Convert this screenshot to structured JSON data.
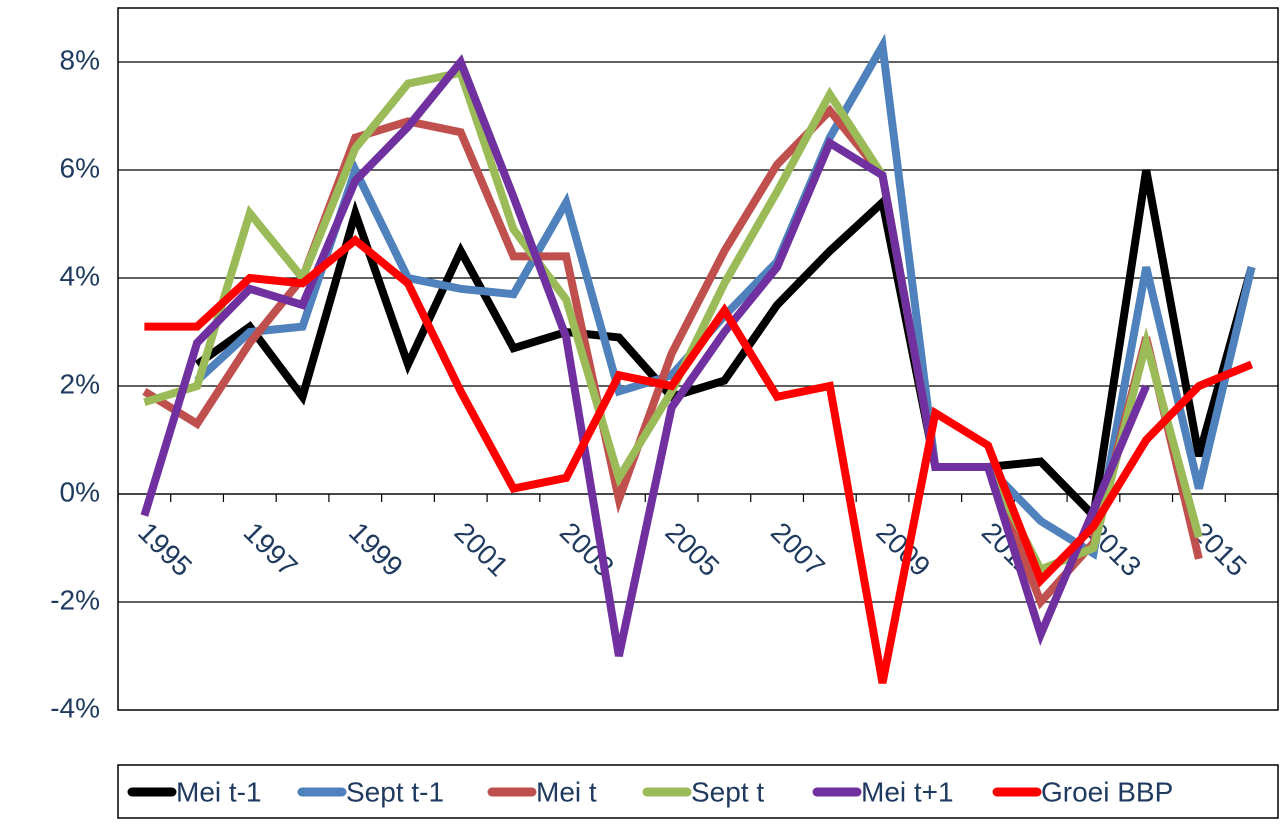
{
  "chart_data": {
    "type": "line",
    "categories": [
      "1995",
      null,
      "1997",
      null,
      "1999",
      null,
      "2001",
      null,
      "2003",
      null,
      "2005",
      null,
      "2007",
      null,
      "2009",
      null,
      "2011",
      null,
      "2013",
      null,
      "2015",
      null
    ],
    "ylim": [
      -4,
      9
    ],
    "yticks": [
      {
        "value": -4,
        "label": "-4%"
      },
      {
        "value": -2,
        "label": "-2%"
      },
      {
        "value": 0,
        "label": "0%"
      },
      {
        "value": 2,
        "label": "2%"
      },
      {
        "value": 4,
        "label": "4%"
      },
      {
        "value": 6,
        "label": "6%"
      },
      {
        "value": 8,
        "label": "8%"
      }
    ],
    "grid": true,
    "legend": "bottom",
    "series": [
      {
        "name": "Mei t-1",
        "color": "#000000",
        "values": [
          null,
          2.4,
          3.1,
          1.8,
          5.2,
          2.4,
          4.5,
          2.7,
          3.0,
          2.9,
          1.8,
          2.1,
          3.5,
          4.5,
          5.4,
          0.5,
          0.5,
          0.6,
          -0.4,
          6.0,
          0.7,
          4.2
        ]
      },
      {
        "name": "Sept t-1",
        "color": "#4f81bd",
        "values": [
          null,
          2.1,
          3.0,
          3.1,
          6.0,
          4.0,
          3.8,
          3.7,
          5.4,
          1.9,
          2.2,
          3.3,
          4.3,
          6.6,
          8.3,
          0.5,
          0.5,
          -0.5,
          -1.1,
          4.2,
          0.1,
          4.2
        ]
      },
      {
        "name": "Mei t",
        "color": "#c0504d",
        "values": [
          1.9,
          1.3,
          2.8,
          4.0,
          6.6,
          6.9,
          6.7,
          4.4,
          4.4,
          -0.1,
          2.6,
          4.5,
          6.1,
          7.1,
          5.9,
          0.5,
          0.5,
          -2.0,
          -0.9,
          2.9,
          -1.2,
          null
        ]
      },
      {
        "name": "Sept t",
        "color": "#9bbb59",
        "values": [
          1.7,
          2.0,
          5.2,
          4.0,
          6.4,
          7.6,
          7.8,
          4.9,
          3.6,
          0.3,
          1.9,
          3.9,
          5.6,
          7.4,
          5.9,
          0.5,
          0.5,
          -1.4,
          -1.0,
          2.8,
          -0.8,
          null
        ]
      },
      {
        "name": "Mei t+1",
        "color": "#7030a0",
        "values": [
          -0.4,
          2.8,
          3.8,
          3.5,
          5.8,
          6.8,
          8.0,
          5.5,
          2.9,
          -3.0,
          1.6,
          3.0,
          4.2,
          6.5,
          5.9,
          0.5,
          0.5,
          -2.6,
          -0.3,
          2.0,
          null,
          null
        ]
      },
      {
        "name": "Groei BBP",
        "color": "#ff0000",
        "values": [
          3.1,
          3.1,
          4.0,
          3.9,
          4.7,
          3.9,
          1.9,
          0.1,
          0.3,
          2.2,
          2.0,
          3.4,
          1.8,
          2.0,
          -3.5,
          1.5,
          0.9,
          -1.6,
          -0.6,
          1.0,
          2.0,
          2.4
        ]
      }
    ]
  }
}
